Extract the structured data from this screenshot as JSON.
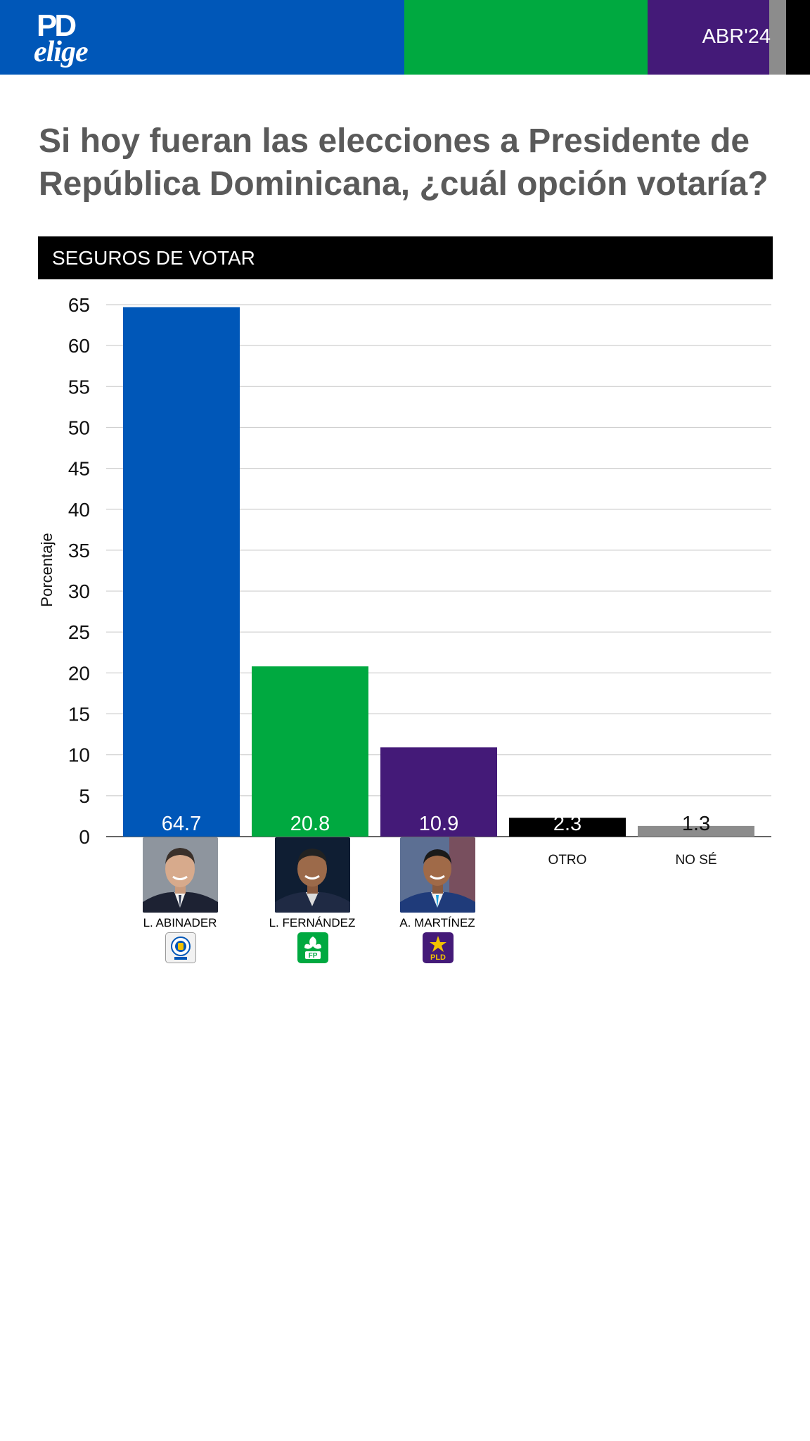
{
  "header": {
    "logo_line1": "PD",
    "logo_line2": "elige",
    "date": "ABR'24"
  },
  "title": "Si hoy fueran las elecciones a Presidente de República Dominicana, ¿cuál opción votaría?",
  "subtitle_bar": "SEGUROS DE VOTAR",
  "colors": {
    "blue": "#0057b8",
    "green": "#00a940",
    "purple": "#441a78",
    "black": "#000000",
    "gray": "#8c8c8c"
  },
  "candidates": [
    {
      "name": "L. ABINADER",
      "party_icon": "prm-party-logo"
    },
    {
      "name": "L. FERNÁNDEZ",
      "party_icon": "fp-party-logo",
      "party_text": "FP"
    },
    {
      "name": "A. MARTÍNEZ",
      "party_icon": "pld-party-logo",
      "party_text": "PLD"
    }
  ],
  "chart_data": {
    "type": "bar",
    "title": "",
    "xlabel": "",
    "ylabel": "Porcentaje",
    "ylim": [
      0,
      65
    ],
    "yticks": [
      0,
      5,
      10,
      15,
      20,
      25,
      30,
      35,
      40,
      45,
      50,
      55,
      60,
      65
    ],
    "categories": [
      "L. ABINADER",
      "L. FERNÁNDEZ",
      "A. MARTÍNEZ",
      "OTRO",
      "NO SÉ"
    ],
    "values": [
      64.7,
      20.8,
      10.9,
      2.3,
      1.3
    ],
    "value_labels": [
      "64.7",
      "20.8",
      "10.9",
      "2.3",
      "1.3"
    ],
    "text_category_labels": [
      "",
      "",
      "",
      "OTRO",
      "NO SÉ"
    ],
    "bar_colors": [
      "#0057b8",
      "#00a940",
      "#441a78",
      "#000000",
      "#8c8c8c"
    ],
    "grid": true,
    "legend": "none"
  }
}
